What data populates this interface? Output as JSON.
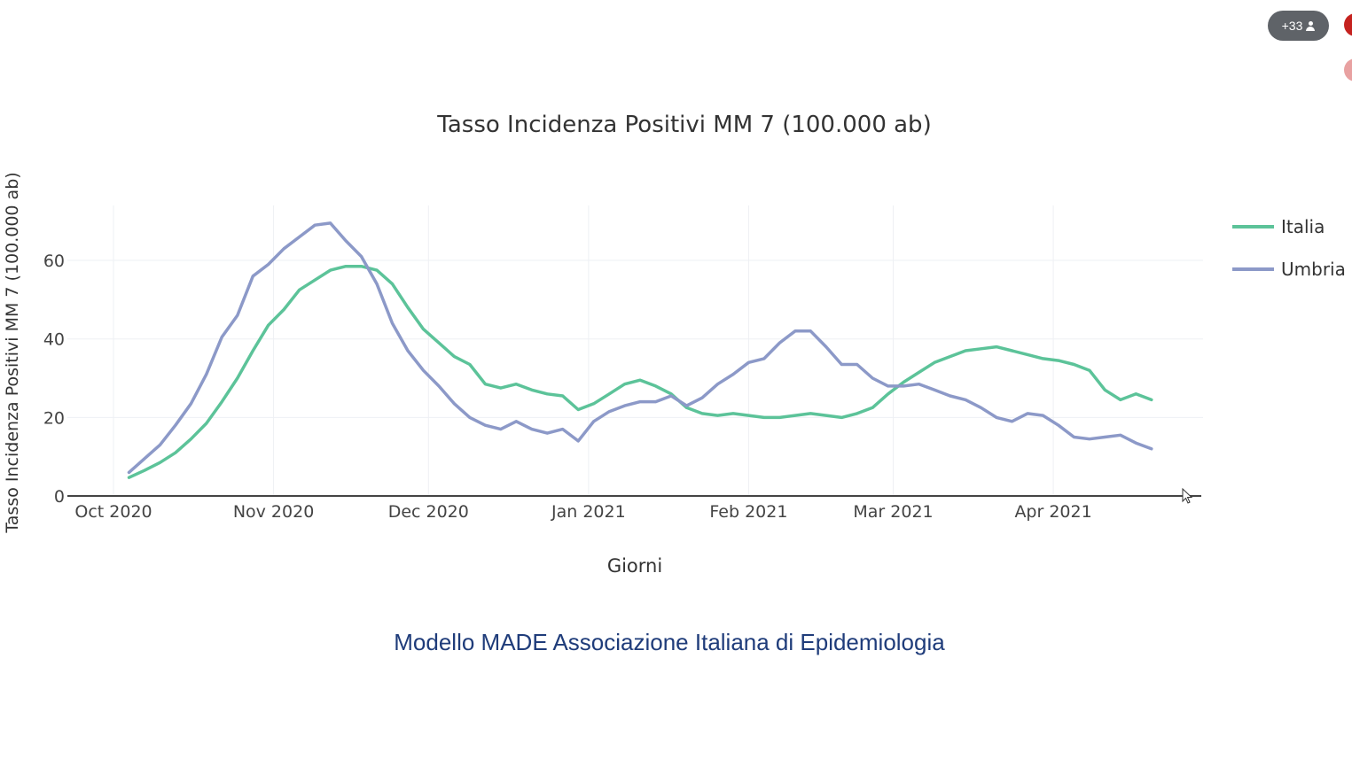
{
  "meeting": {
    "participants_label": "+33"
  },
  "caption": "Modello MADE Associazione Italiana di Epidemiologia",
  "chart_data": {
    "type": "line",
    "title": "Tasso Incidenza Positivi MM 7 (100.000 ab)",
    "xlabel": "Giorni",
    "ylabel": "Tasso Incidenza Positivi MM 7 (100.000 ab)",
    "x_tick_labels": [
      "Oct 2020",
      "Nov 2020",
      "Dec 2020",
      "Jan 2021",
      "Feb 2021",
      "Mar 2021",
      "Apr 2021"
    ],
    "x_ticks": [
      "2020-10-01",
      "2020-11-01",
      "2020-12-01",
      "2021-01-01",
      "2021-02-01",
      "2021-03-01",
      "2021-04-01"
    ],
    "xlim": [
      "2020-10-01",
      "2021-04-30"
    ],
    "y_ticks": [
      0,
      20,
      40,
      60
    ],
    "ylim": [
      0,
      74
    ],
    "grid": true,
    "legend_position": "right",
    "series": [
      {
        "name": "Italia",
        "color": "#5cc399",
        "x": [
          "2020-10-04",
          "2020-10-07",
          "2020-10-10",
          "2020-10-13",
          "2020-10-16",
          "2020-10-19",
          "2020-10-22",
          "2020-10-25",
          "2020-10-28",
          "2020-10-31",
          "2020-11-03",
          "2020-11-06",
          "2020-11-09",
          "2020-11-12",
          "2020-11-15",
          "2020-11-18",
          "2020-11-21",
          "2020-11-24",
          "2020-11-27",
          "2020-11-30",
          "2020-12-03",
          "2020-12-06",
          "2020-12-09",
          "2020-12-12",
          "2020-12-15",
          "2020-12-18",
          "2020-12-21",
          "2020-12-24",
          "2020-12-27",
          "2020-12-30",
          "2021-01-02",
          "2021-01-05",
          "2021-01-08",
          "2021-01-11",
          "2021-01-14",
          "2021-01-17",
          "2021-01-20",
          "2021-01-23",
          "2021-01-26",
          "2021-01-29",
          "2021-02-01",
          "2021-02-04",
          "2021-02-07",
          "2021-02-10",
          "2021-02-13",
          "2021-02-16",
          "2021-02-19",
          "2021-02-22",
          "2021-02-25",
          "2021-02-28",
          "2021-03-03",
          "2021-03-06",
          "2021-03-09",
          "2021-03-12",
          "2021-03-15",
          "2021-03-18",
          "2021-03-21",
          "2021-03-24",
          "2021-03-27",
          "2021-03-30",
          "2021-04-02",
          "2021-04-05",
          "2021-04-08",
          "2021-04-11",
          "2021-04-14",
          "2021-04-17",
          "2021-04-20"
        ],
        "values": [
          4.7,
          6.5,
          8.5,
          11,
          14.5,
          18.5,
          24,
          30,
          37,
          43.5,
          47.5,
          52.5,
          55,
          57.5,
          58.5,
          58.5,
          57.5,
          54,
          48,
          42.5,
          39,
          35.5,
          33.5,
          28.5,
          27.5,
          28.5,
          27,
          26,
          25.5,
          22,
          23.5,
          26,
          28.5,
          29.5,
          28,
          26,
          22.5,
          21,
          20.5,
          21,
          20.5,
          20,
          20,
          20.5,
          21,
          20.5,
          20,
          21,
          22.5,
          26,
          29,
          31.5,
          34,
          35.5,
          37,
          37.5,
          38,
          37,
          36,
          35,
          34.5,
          33.5,
          32,
          27,
          24.5,
          26,
          24.5
        ]
      },
      {
        "name": "Umbria",
        "color": "#8c99c8",
        "x": [
          "2020-10-04",
          "2020-10-07",
          "2020-10-10",
          "2020-10-13",
          "2020-10-16",
          "2020-10-19",
          "2020-10-22",
          "2020-10-25",
          "2020-10-28",
          "2020-10-31",
          "2020-11-03",
          "2020-11-06",
          "2020-11-09",
          "2020-11-12",
          "2020-11-15",
          "2020-11-18",
          "2020-11-21",
          "2020-11-24",
          "2020-11-27",
          "2020-11-30",
          "2020-12-03",
          "2020-12-06",
          "2020-12-09",
          "2020-12-12",
          "2020-12-15",
          "2020-12-18",
          "2020-12-21",
          "2020-12-24",
          "2020-12-27",
          "2020-12-30",
          "2021-01-02",
          "2021-01-05",
          "2021-01-08",
          "2021-01-11",
          "2021-01-14",
          "2021-01-17",
          "2021-01-20",
          "2021-01-23",
          "2021-01-26",
          "2021-01-29",
          "2021-02-01",
          "2021-02-04",
          "2021-02-07",
          "2021-02-10",
          "2021-02-13",
          "2021-02-16",
          "2021-02-19",
          "2021-02-22",
          "2021-02-25",
          "2021-02-28",
          "2021-03-03",
          "2021-03-06",
          "2021-03-09",
          "2021-03-12",
          "2021-03-15",
          "2021-03-18",
          "2021-03-21",
          "2021-03-24",
          "2021-03-27",
          "2021-03-30",
          "2021-04-02",
          "2021-04-05",
          "2021-04-08",
          "2021-04-11",
          "2021-04-14",
          "2021-04-17",
          "2021-04-20"
        ],
        "values": [
          6,
          9.5,
          13,
          18,
          23.5,
          31,
          40.5,
          46,
          56,
          59,
          63,
          66,
          69,
          69.5,
          65,
          61,
          54,
          44,
          37,
          32,
          28,
          23.5,
          20,
          18,
          17,
          19,
          17,
          16,
          17,
          14,
          19,
          21.5,
          23,
          24,
          24,
          25.5,
          23,
          25,
          28.5,
          31,
          34,
          35,
          39,
          42,
          42,
          38,
          33.5,
          33.5,
          30,
          28,
          28,
          28.5,
          27,
          25.5,
          24.5,
          22.5,
          20,
          19,
          21,
          20.5,
          18,
          15,
          14.5,
          15,
          15.5,
          13.5,
          12
        ]
      }
    ]
  }
}
